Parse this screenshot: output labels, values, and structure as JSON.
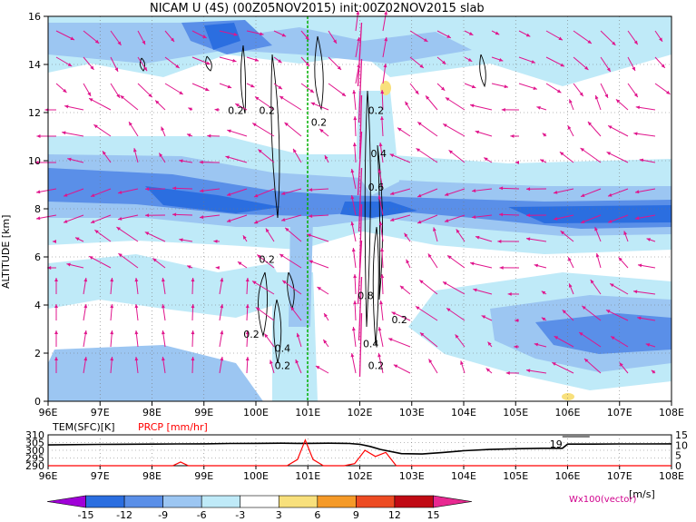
{
  "chart_data": [
    {
      "type": "heatmap",
      "title": "NICAM U (4S) (00Z05NOV2015) init:00Z02NOV2015 slab",
      "ylabel": "ALTITUDE [km]",
      "xlabel": "",
      "x_ticks": [
        "96E",
        "97E",
        "98E",
        "99E",
        "100E",
        "101E",
        "102E",
        "103E",
        "104E",
        "105E",
        "106E",
        "107E",
        "108E"
      ],
      "y_ticks": [
        "0",
        "2",
        "4",
        "6",
        "8",
        "10",
        "12",
        "14",
        "16"
      ],
      "xlim": [
        96,
        108
      ],
      "ylim": [
        0,
        16
      ],
      "grid": "dotted",
      "contour_labels": [
        {
          "x": 99.6,
          "y": 12.1,
          "text": "0.2"
        },
        {
          "x": 100.2,
          "y": 12.1,
          "text": "0.2"
        },
        {
          "x": 100.2,
          "y": 5.9,
          "text": "0.2"
        },
        {
          "x": 101.2,
          "y": 11.6,
          "text": "0.2"
        },
        {
          "x": 102.3,
          "y": 12.1,
          "text": "0.2"
        },
        {
          "x": 102.35,
          "y": 10.3,
          "text": "0.4"
        },
        {
          "x": 102.3,
          "y": 8.9,
          "text": "0.6"
        },
        {
          "x": 102.1,
          "y": 4.4,
          "text": "0.8"
        },
        {
          "x": 102.75,
          "y": 3.4,
          "text": "0.2"
        },
        {
          "x": 102.2,
          "y": 2.4,
          "text": "0.4"
        },
        {
          "x": 102.3,
          "y": 1.5,
          "text": "0.2"
        },
        {
          "x": 99.9,
          "y": 2.8,
          "text": "0.2"
        },
        {
          "x": 100.5,
          "y": 2.2,
          "text": "0.4"
        },
        {
          "x": 100.5,
          "y": 1.5,
          "text": "0.2"
        }
      ],
      "zonal_wind_band": {
        "altitude_km": [
          7,
          9
        ],
        "u_ms": -9
      },
      "vector_label": "Wx100(vector)"
    },
    {
      "type": "line",
      "legend": [
        "TEM(SFC)[K]",
        "PRCP [mm/hr]"
      ],
      "x_ticks": [
        "96E",
        "97E",
        "98E",
        "99E",
        "100E",
        "101E",
        "102E",
        "103E",
        "104E",
        "105E",
        "106E",
        "107E",
        "108E"
      ],
      "xlim": [
        96,
        108
      ],
      "y_left_ticks": [
        "310",
        "305",
        "300",
        "295",
        "290"
      ],
      "y_left_range": [
        290,
        310
      ],
      "y_right_ticks": [
        "15",
        "10",
        "5",
        "0"
      ],
      "y_right_range": [
        0,
        15
      ],
      "annotation": {
        "x": 105.9,
        "text": "19"
      },
      "series": [
        {
          "name": "TEM(SFC)[K]",
          "color": "#000000",
          "x": [
            96,
            97,
            98,
            98.5,
            99,
            99.5,
            100,
            100.5,
            100.8,
            101,
            101.4,
            101.8,
            102,
            102.2,
            102.4,
            102.8,
            103.2,
            103.6,
            104,
            104.5,
            105,
            105.5,
            105.9,
            106,
            106.5,
            107,
            107.5,
            108
          ],
          "y": [
            303.5,
            303.8,
            304,
            304.1,
            304.2,
            304.4,
            304.5,
            304.6,
            304.5,
            304.5,
            304.6,
            304.4,
            303.9,
            302.5,
            300.5,
            297.8,
            297.6,
            298.6,
            299.7,
            300.5,
            301,
            301.3,
            301.3,
            304,
            304,
            304.1,
            304.1,
            304.2
          ]
        },
        {
          "name": "PRCP [mm/hr]",
          "color": "#ff0000",
          "x": [
            96,
            98,
            98.4,
            98.55,
            98.7,
            99,
            100.6,
            100.8,
            100.95,
            101.1,
            101.3,
            101.7,
            101.9,
            102.1,
            102.3,
            102.5,
            102.7,
            103,
            108
          ],
          "y": [
            0,
            0,
            0,
            1.8,
            0,
            0,
            0,
            3,
            12.5,
            3,
            0,
            0,
            1,
            7.5,
            4.5,
            6.5,
            0,
            0,
            0
          ]
        }
      ]
    }
  ],
  "colorbar": {
    "ticks": [
      "-15",
      "-12",
      "-9",
      "-6",
      "-3",
      "3",
      "6",
      "9",
      "12",
      "15"
    ],
    "unit": "[m/s]",
    "colors": [
      "#a000d8",
      "#2b6ee0",
      "#5a8fe8",
      "#9cc6f2",
      "#bfeaf8",
      "#ffffff",
      "#f8e07c",
      "#f59a28",
      "#ed4b22",
      "#c00a14",
      "#e82891"
    ]
  },
  "styles": {
    "vector_color": "#e0148c",
    "zero_line_color": "#00b000",
    "vector_label_color": "#d0008c"
  }
}
